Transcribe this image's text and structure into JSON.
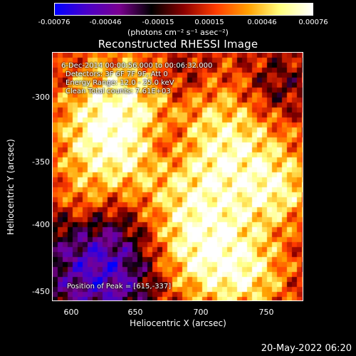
{
  "colorbar": {
    "ticks": [
      "-0.00076",
      "-0.00046",
      "-0.00015",
      "0.00015",
      "0.00046",
      "0.00076"
    ],
    "units": "(photons cm⁻² s⁻¹ asec⁻²)",
    "colors": [
      "#0000ff",
      "#4b00c8",
      "#7a0090",
      "#000000",
      "#8b0000",
      "#ff3c00",
      "#ffa000",
      "#ffff80",
      "#ffffff"
    ]
  },
  "chart_data": {
    "type": "heatmap",
    "title": "Reconstructed RHESSI Image",
    "xlabel": "Heliocentric X (arcsec)",
    "ylabel": "Heliocentric Y (arcsec)",
    "xlim": [
      588,
      776
    ],
    "ylim": [
      -460,
      -272
    ],
    "xticks": [
      600,
      650,
      700,
      750
    ],
    "yticks": [
      -300,
      -350,
      -400,
      -450
    ],
    "color_range": [
      -0.00076,
      0.00076
    ],
    "peak": [
      615,
      -337
    ],
    "annotations": {
      "line1": "6-Dec-2014 00:00:56.000 to 00:06:32.000",
      "line2": "Detectors: 3F 6F 7F 9F, Att 0",
      "line3": "Energy Range: 12.0 - 25.0 keV",
      "line4": "Clean    Total counts: 7.61E+03",
      "peak_text": "Position of Peak = [615,-337]"
    }
  },
  "timestamp": "20-May-2022 06:20"
}
